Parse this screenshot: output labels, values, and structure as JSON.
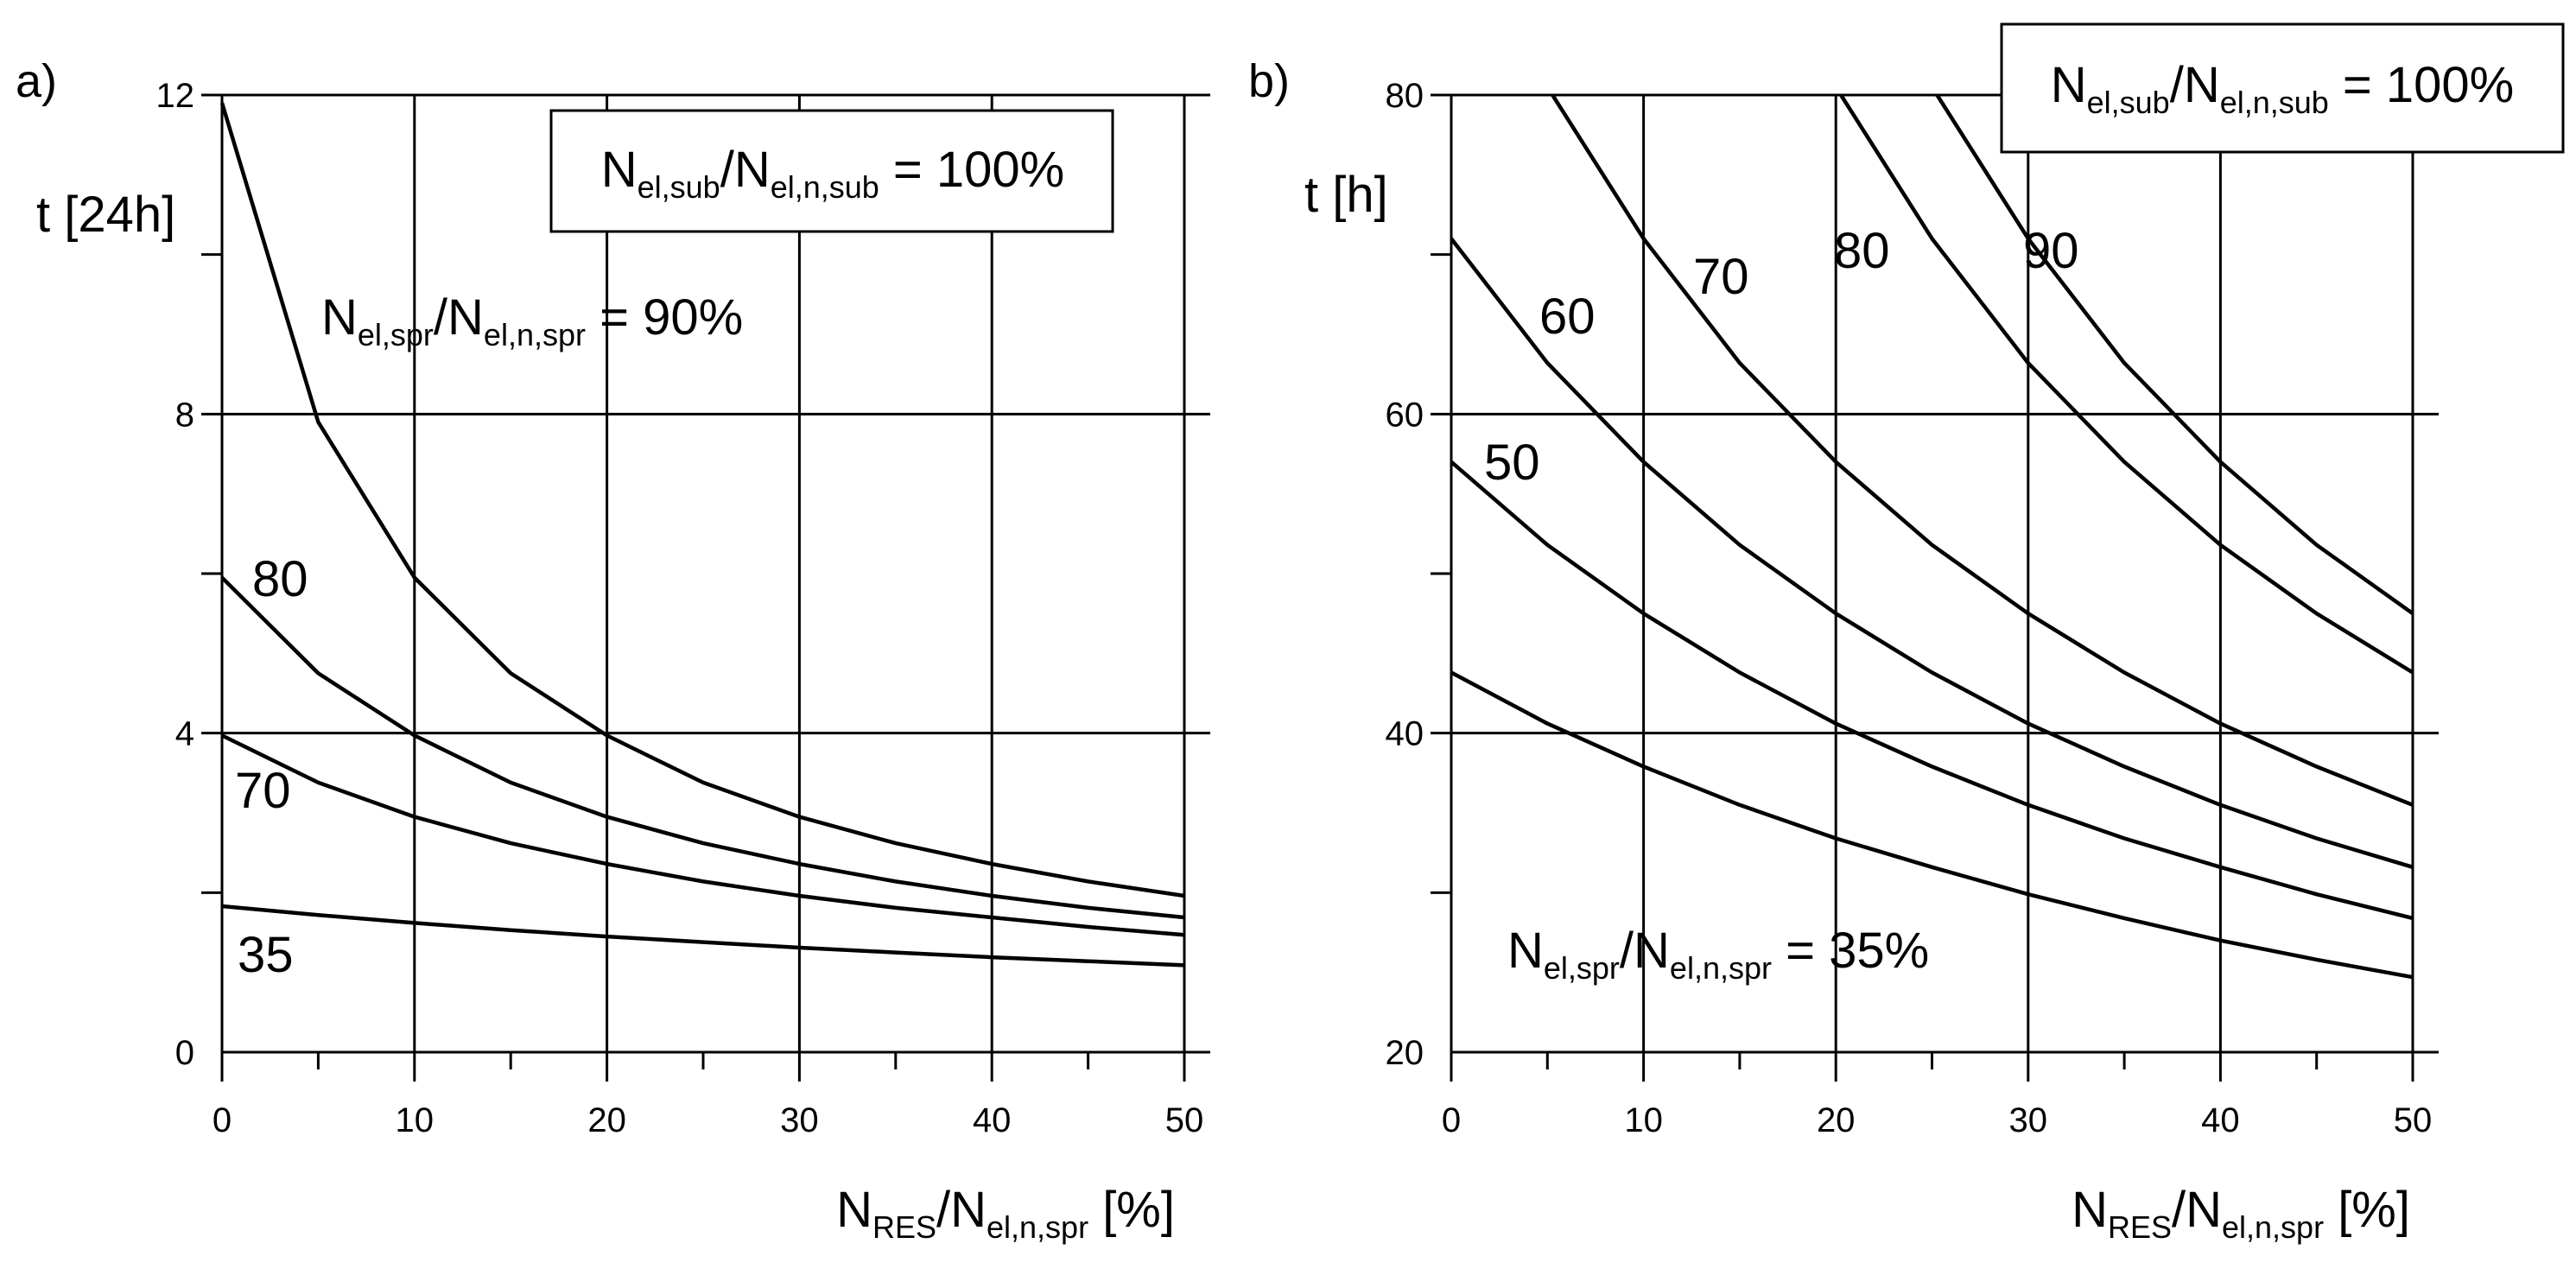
{
  "chart_data": [
    {
      "type": "line",
      "panel_label": "a)",
      "ylabel": "t [24h]",
      "xlabel": {
        "main": "N",
        "sub1": "RES",
        "mid": "/N",
        "sub2": "el,n,spr",
        "tail": " [%]"
      },
      "xlim": [
        0,
        50
      ],
      "ylim": [
        0,
        12
      ],
      "x_ticks": [
        0,
        10,
        20,
        30,
        40,
        50
      ],
      "y_ticks": [
        0,
        4,
        8,
        12
      ],
      "grid": true,
      "box_text": {
        "main": "N",
        "sub1": "el,sub",
        "mid": "/N",
        "sub2": "el,n,sub",
        "tail": " = 100%"
      },
      "series_text": {
        "main": "N",
        "sub1": "el,spr",
        "mid": "/N",
        "sub2": "el,n,spr",
        "tail": " = 90%"
      },
      "x": [
        0,
        5,
        10,
        15,
        20,
        25,
        30,
        35,
        40,
        45,
        50
      ],
      "series": [
        {
          "name": "90%",
          "label": "",
          "values": [
            11.9,
            7.9,
            5.95,
            4.75,
            3.97,
            3.38,
            2.95,
            2.62,
            2.36,
            2.14,
            1.96
          ]
        },
        {
          "name": "80",
          "label": "80",
          "values": [
            5.95,
            4.75,
            3.97,
            3.38,
            2.95,
            2.62,
            2.36,
            2.14,
            1.96,
            1.81,
            1.69
          ]
        },
        {
          "name": "70",
          "label": "70",
          "values": [
            3.97,
            3.38,
            2.95,
            2.62,
            2.36,
            2.14,
            1.96,
            1.81,
            1.69,
            1.57,
            1.47
          ]
        },
        {
          "name": "35",
          "label": "35",
          "values": [
            1.83,
            1.72,
            1.62,
            1.53,
            1.45,
            1.38,
            1.31,
            1.25,
            1.19,
            1.14,
            1.09
          ]
        }
      ]
    },
    {
      "type": "line",
      "panel_label": "b)",
      "ylabel": "t [h]",
      "xlabel": {
        "main": "N",
        "sub1": "RES",
        "mid": "/N",
        "sub2": "el,n,spr",
        "tail": " [%]"
      },
      "xlim": [
        0,
        50
      ],
      "ylim": [
        20,
        80
      ],
      "x_ticks": [
        0,
        10,
        20,
        30,
        40,
        50
      ],
      "y_ticks": [
        20,
        40,
        60,
        80
      ],
      "grid": true,
      "box_text": {
        "main": "N",
        "sub1": "el,sub",
        "mid": "/N",
        "sub2": "el,n,sub",
        "tail": " = 100%"
      },
      "series_text": {
        "main": "N",
        "sub1": "el,spr",
        "mid": "/N",
        "sub2": "el,n,spr",
        "tail": " = 35%"
      },
      "x": [
        0,
        5,
        10,
        15,
        20,
        25,
        30,
        35,
        40,
        45,
        50
      ],
      "series": [
        {
          "name": "90",
          "label": "90",
          "values": [
            null,
            null,
            null,
            null,
            null,
            80.5,
            71,
            63.2,
            57,
            51.8,
            47.5
          ]
        },
        {
          "name": "80",
          "label": "80",
          "values": [
            null,
            null,
            null,
            null,
            80.5,
            71,
            63.2,
            57,
            51.8,
            47.5,
            43.8
          ]
        },
        {
          "name": "70",
          "label": "70",
          "values": [
            null,
            80.5,
            71,
            63.2,
            57,
            51.8,
            47.5,
            43.8,
            40.6,
            37.9,
            35.5
          ]
        },
        {
          "name": "60",
          "label": "60",
          "values": [
            71,
            63.2,
            57,
            51.8,
            47.5,
            43.8,
            40.6,
            37.9,
            35.5,
            33.4,
            31.6
          ]
        },
        {
          "name": "50",
          "label": "50",
          "values": [
            57,
            51.8,
            47.5,
            43.8,
            40.6,
            37.9,
            35.5,
            33.4,
            31.6,
            29.9,
            28.4
          ]
        },
        {
          "name": "35%",
          "label": "",
          "values": [
            43.8,
            40.6,
            37.9,
            35.5,
            33.4,
            31.6,
            29.9,
            28.4,
            27.0,
            25.8,
            24.7
          ]
        }
      ]
    }
  ]
}
